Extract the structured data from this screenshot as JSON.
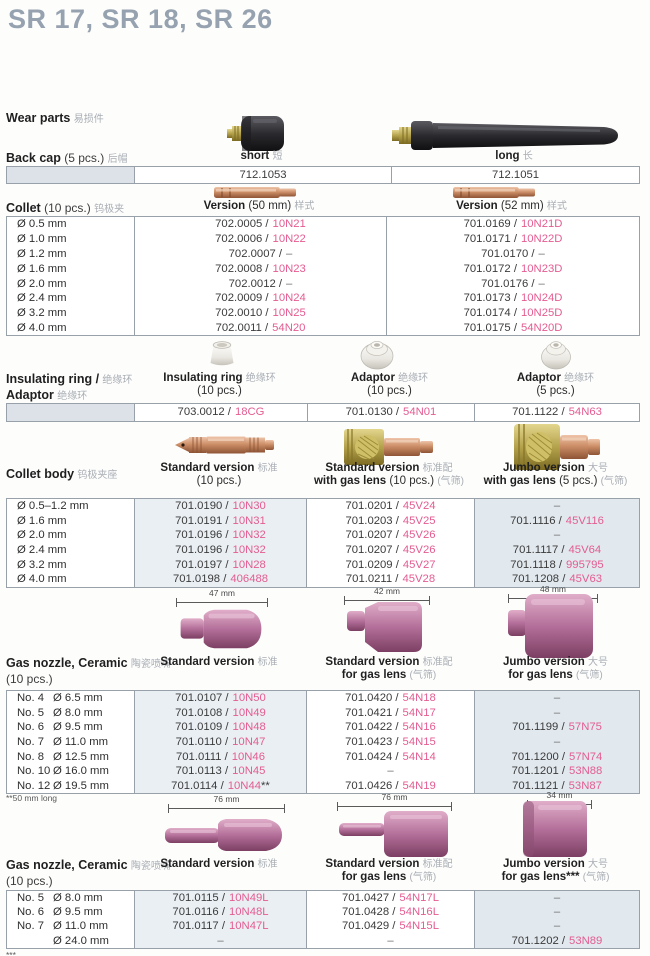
{
  "page": {
    "title": "SR 17, SR 18, SR 26"
  },
  "colors": {
    "accent_pink": "#e45c92",
    "title_gray_blue": "#96a2b0",
    "table_border": "#98a1a9"
  },
  "wear_parts": {
    "label": "Wear parts",
    "label_cn": "易损件"
  },
  "back_cap": {
    "label": "Back cap",
    "qty": "(5 pcs.)",
    "label_cn": "后帽",
    "variants": [
      {
        "name": "short",
        "name_cn": "短",
        "code": "712.1053"
      },
      {
        "name": "long",
        "name_cn": "长",
        "code": "712.1051"
      }
    ]
  },
  "collet": {
    "label": "Collet",
    "qty": "(10 pcs.)",
    "label_cn": "钨极夹",
    "columns": [
      {
        "name": "Version",
        "size": "(50 mm)",
        "cn": "样式"
      },
      {
        "name": "Version",
        "size": "(52 mm)",
        "cn": "样式"
      }
    ],
    "rows": [
      {
        "dia": "Ø 0.5 mm",
        "cells": [
          {
            "code": "702.0005 /",
            "alt": "10N21"
          },
          {
            "code": "701.0169 /",
            "alt": "10N21D"
          }
        ]
      },
      {
        "dia": "Ø 1.0 mm",
        "cells": [
          {
            "code": "702.0006 /",
            "alt": "10N22"
          },
          {
            "code": "701.0171 /",
            "alt": "10N22D"
          }
        ]
      },
      {
        "dia": "Ø 1.2 mm",
        "cells": [
          {
            "code": "702.0007 /",
            "alt": "–"
          },
          {
            "code": "701.0170 /",
            "alt": "–"
          }
        ]
      },
      {
        "dia": "Ø 1.6 mm",
        "cells": [
          {
            "code": "702.0008 /",
            "alt": "10N23"
          },
          {
            "code": "701.0172 /",
            "alt": "10N23D"
          }
        ]
      },
      {
        "dia": "Ø 2.0 mm",
        "cells": [
          {
            "code": "702.0012 /",
            "alt": "–"
          },
          {
            "code": "701.0176 /",
            "alt": "–"
          }
        ]
      },
      {
        "dia": "Ø 2.4 mm",
        "cells": [
          {
            "code": "702.0009 /",
            "alt": "10N24"
          },
          {
            "code": "701.0173 /",
            "alt": "10N24D"
          }
        ]
      },
      {
        "dia": "Ø 3.2 mm",
        "cells": [
          {
            "code": "702.0010 /",
            "alt": "10N25"
          },
          {
            "code": "701.0174 /",
            "alt": "10N25D"
          }
        ]
      },
      {
        "dia": "Ø 4.0 mm",
        "cells": [
          {
            "code": "702.0011 /",
            "alt": "54N20"
          },
          {
            "code": "701.0175 /",
            "alt": "54N20D"
          }
        ]
      }
    ]
  },
  "insulating": {
    "label_1": "Insulating ring /",
    "label_1_cn": "绝缘环",
    "label_2": "Adaptor",
    "label_2_cn": "绝缘环",
    "columns": [
      {
        "name": "Insulating ring",
        "cn": "绝缘环",
        "qty": "(10 pcs.)",
        "code": "703.0012 /",
        "alt": "18CG"
      },
      {
        "name": "Adaptor",
        "cn": "绝缘环",
        "qty": "(10 pcs.)",
        "code": "701.0130 /",
        "alt": "54N01"
      },
      {
        "name": "Adaptor",
        "cn": "绝缘环",
        "qty": "(5 pcs.)",
        "code": "701.1122 /",
        "alt": "54N63"
      }
    ]
  },
  "collet_body": {
    "label": "Collet body",
    "label_cn": "钨极夹座",
    "columns": [
      {
        "name": "Standard version",
        "cn": "标准",
        "sub_bold": "",
        "sub": "(10 pcs.)",
        "sub_cn": ""
      },
      {
        "name": "Standard version",
        "cn": "标准配",
        "sub_bold": "with gas lens",
        "sub": "(10 pcs.)",
        "sub_cn": "(气筛)"
      },
      {
        "name": "Jumbo version",
        "cn": "大号",
        "sub_bold": "with gas lens",
        "sub": "(5 pcs.)",
        "sub_cn": "(气筛)"
      }
    ],
    "rows": [
      {
        "dia": "Ø 0.5–1.2 mm",
        "cells": [
          {
            "code": "701.0190 /",
            "alt": "10N30"
          },
          {
            "code": "701.0201 /",
            "alt": "45V24"
          },
          "–"
        ]
      },
      {
        "dia": "Ø 1.6 mm",
        "cells": [
          {
            "code": "701.0191 /",
            "alt": "10N31"
          },
          {
            "code": "701.0203 /",
            "alt": "45V25"
          },
          {
            "code": "701.1116 /",
            "alt": "45V116"
          }
        ]
      },
      {
        "dia": "Ø 2.0 mm",
        "cells": [
          {
            "code": "701.0196 /",
            "alt": "10N32"
          },
          {
            "code": "701.0207 /",
            "alt": "45V26"
          },
          "–"
        ]
      },
      {
        "dia": "Ø 2.4 mm",
        "cells": [
          {
            "code": "701.0196 /",
            "alt": "10N32"
          },
          {
            "code": "701.0207 /",
            "alt": "45V26"
          },
          {
            "code": "701.1117 /",
            "alt": "45V64"
          }
        ]
      },
      {
        "dia": "Ø 3.2 mm",
        "cells": [
          {
            "code": "701.0197 /",
            "alt": "10N28"
          },
          {
            "code": "701.0209 /",
            "alt": "45V27"
          },
          {
            "code": "701.1118 /",
            "alt": "995795"
          }
        ]
      },
      {
        "dia": "Ø 4.0 mm",
        "cells": [
          {
            "code": "701.0198 /",
            "alt": "406488"
          },
          {
            "code": "701.0211 /",
            "alt": "45V28"
          },
          {
            "code": "701.1208 /",
            "alt": "45V63"
          }
        ]
      }
    ]
  },
  "gas_nozzle_1": {
    "label": "Gas nozzle, Ceramic",
    "label_cn": "陶瓷喷嘴",
    "qty": "(10 pcs.)",
    "dims": [
      "47 mm",
      "42 mm",
      "48 mm"
    ],
    "columns": [
      {
        "name": "Standard version",
        "cn": "标准",
        "sub_bold": "",
        "sub": "",
        "sub_cn": ""
      },
      {
        "name": "Standard version",
        "cn": "标准配",
        "sub_bold": "for gas lens",
        "sub": "",
        "sub_cn": "(气筛)"
      },
      {
        "name": "Jumbo version",
        "cn": "大号",
        "sub_bold": "for gas lens",
        "sub": "",
        "sub_cn": "(气筛)"
      }
    ],
    "rows": [
      {
        "no": "No. 4",
        "dia": "Ø 6.5 mm",
        "cells": [
          {
            "code": "701.0107 /",
            "alt": "10N50"
          },
          {
            "code": "701.0420 /",
            "alt": "54N18"
          },
          "–"
        ]
      },
      {
        "no": "No. 5",
        "dia": "Ø 8.0 mm",
        "cells": [
          {
            "code": "701.0108 /",
            "alt": "10N49"
          },
          {
            "code": "701.0421 /",
            "alt": "54N17"
          },
          "–"
        ]
      },
      {
        "no": "No. 6",
        "dia": "Ø 9.5 mm",
        "cells": [
          {
            "code": "701.0109 /",
            "alt": "10N48"
          },
          {
            "code": "701.0422 /",
            "alt": "54N16"
          },
          {
            "code": "701.1199 /",
            "alt": "57N75"
          }
        ]
      },
      {
        "no": "No. 7",
        "dia": "Ø 11.0 mm",
        "cells": [
          {
            "code": "701.0110 /",
            "alt": "10N47"
          },
          {
            "code": "701.0423 /",
            "alt": "54N15"
          },
          "–"
        ]
      },
      {
        "no": "No. 8",
        "dia": "Ø 12.5 mm",
        "cells": [
          {
            "code": "701.0111 /",
            "alt": "10N46"
          },
          {
            "code": "701.0424 /",
            "alt": "54N14"
          },
          {
            "code": "701.1200 /",
            "alt": "57N74"
          }
        ]
      },
      {
        "no": "No. 10",
        "dia": "Ø 16.0 mm",
        "cells": [
          {
            "code": "701.0113 /",
            "alt": "10N45"
          },
          "–",
          {
            "code": "701.1201 /",
            "alt": "53N88"
          }
        ]
      },
      {
        "no": "No. 12",
        "dia": "Ø 19.5 mm",
        "cells": [
          {
            "code": "701.0114 /",
            "alt": "10N44",
            "sup": "**"
          },
          {
            "code": "701.0426 /",
            "alt": "54N19"
          },
          {
            "code": "701.1121 /",
            "alt": "53N87"
          }
        ]
      }
    ]
  },
  "footnote_1": "**50 mm long",
  "gas_nozzle_2": {
    "label": "Gas nozzle, Ceramic",
    "label_cn": "陶瓷喷嘴",
    "qty": "(10 pcs.)",
    "dims": [
      "76 mm",
      "76 mm",
      "34 mm"
    ],
    "columns": [
      {
        "name": "Standard version",
        "cn": "标准",
        "sub_bold": "",
        "sub": "",
        "sub_cn": ""
      },
      {
        "name": "Standard version",
        "cn": "标准配",
        "sub_bold": "for gas lens",
        "sub": "",
        "sub_cn": "(气筛)"
      },
      {
        "name": "Jumbo version",
        "cn": "大号",
        "sub_bold": "for gas lens***",
        "sub": "",
        "sub_cn": "(气筛)"
      }
    ],
    "rows": [
      {
        "no": "No. 5",
        "dia": "Ø 8.0 mm",
        "cells": [
          {
            "code": "701.0115 /",
            "alt": "10N49L"
          },
          {
            "code": "701.0427 /",
            "alt": "54N17L"
          },
          "–"
        ]
      },
      {
        "no": "No. 6",
        "dia": "Ø 9.5 mm",
        "cells": [
          {
            "code": "701.0116 /",
            "alt": "10N48L"
          },
          {
            "code": "701.0428 /",
            "alt": "54N16L"
          },
          "–"
        ]
      },
      {
        "no": "No. 7",
        "dia": "Ø 11.0 mm",
        "cells": [
          {
            "code": "701.0117 /",
            "alt": "10N47L"
          },
          {
            "code": "701.0429 /",
            "alt": "54N15L"
          },
          "–"
        ]
      },
      {
        "no": "",
        "dia": "Ø 24.0 mm",
        "cells": [
          "–",
          "–",
          {
            "code": "701.1202 /",
            "alt": "53N89"
          }
        ]
      }
    ]
  },
  "footnote_2": "***"
}
